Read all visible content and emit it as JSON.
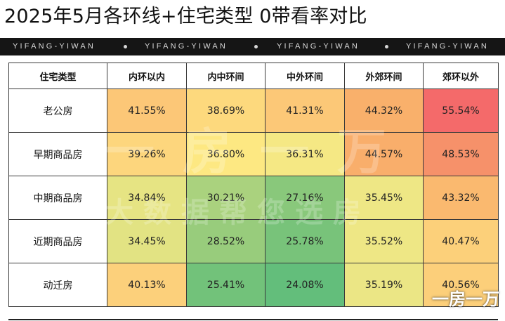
{
  "title": "2025年5月各环线+住宅类型 0带看率对比",
  "banner": {
    "items": [
      "YIFANG-YIWAN",
      "YIFANG-YIWAN",
      "YIFANG-YIWAN",
      "YIFANG-YIWAN"
    ]
  },
  "table": {
    "columns": [
      "住宅类型",
      "内环以内",
      "内中环间",
      "中外环间",
      "外郊环间",
      "郊环以外"
    ],
    "rows": [
      {
        "label": "老公房",
        "cells": [
          {
            "value": "41.55%",
            "color": "#fcc777"
          },
          {
            "value": "38.69%",
            "color": "#fdd97d"
          },
          {
            "value": "41.31%",
            "color": "#fcc877"
          },
          {
            "value": "44.32%",
            "color": "#f9b06b"
          },
          {
            "value": "55.54%",
            "color": "#f46a6a"
          }
        ]
      },
      {
        "label": "早期商品房",
        "cells": [
          {
            "value": "39.26%",
            "color": "#fdd67d"
          },
          {
            "value": "36.80%",
            "color": "#fde882"
          },
          {
            "value": "36.31%",
            "color": "#f5e884"
          },
          {
            "value": "44.57%",
            "color": "#f9ae6b"
          },
          {
            "value": "48.53%",
            "color": "#f6916a"
          }
        ]
      },
      {
        "label": "中期商品房",
        "cells": [
          {
            "value": "34.84%",
            "color": "#e6e483"
          },
          {
            "value": "30.21%",
            "color": "#aad27e"
          },
          {
            "value": "27.16%",
            "color": "#89c87b"
          },
          {
            "value": "35.45%",
            "color": "#eee785"
          },
          {
            "value": "43.32%",
            "color": "#fab96f"
          }
        ]
      },
      {
        "label": "近期商品房",
        "cells": [
          {
            "value": "34.45%",
            "color": "#e2e383"
          },
          {
            "value": "28.52%",
            "color": "#98cc7c"
          },
          {
            "value": "25.78%",
            "color": "#78c37a"
          },
          {
            "value": "35.52%",
            "color": "#eee785"
          },
          {
            "value": "40.47%",
            "color": "#fcd07a"
          }
        ]
      },
      {
        "label": "动迁房",
        "cells": [
          {
            "value": "40.13%",
            "color": "#fcd07b"
          },
          {
            "value": "25.41%",
            "color": "#72c27a"
          },
          {
            "value": "24.08%",
            "color": "#63be7b"
          },
          {
            "value": "35.19%",
            "color": "#ebe685"
          },
          {
            "value": "40.56%",
            "color": "#fccf7a"
          }
        ]
      }
    ]
  },
  "watermark": {
    "line1": "一房一万",
    "line2": "大数据帮您选房"
  },
  "logo_text": "一房一万"
}
